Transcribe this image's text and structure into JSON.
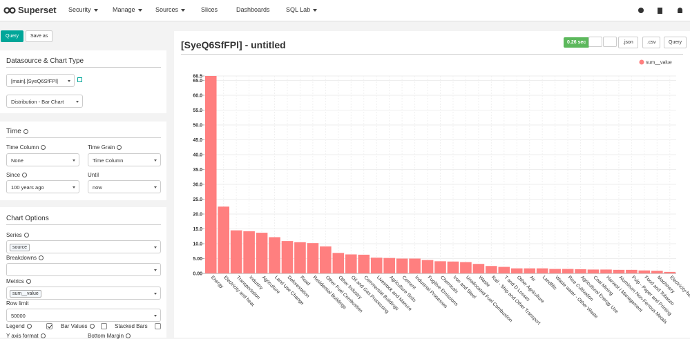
{
  "ui": {
    "nav": {
      "brand": "Superset",
      "items": [
        "Security",
        "Manage",
        "Sources",
        "Slices",
        "Dashboards",
        "SQL Lab"
      ]
    },
    "toolbar": {
      "query": "Query",
      "save_as": "Save as"
    },
    "datasource": {
      "title": "Datasource & Chart Type",
      "datasource": "[main].[SyeQ6SfFPl]",
      "viz_type": "Distribution - Bar Chart"
    },
    "time": {
      "title": "Time",
      "time_column_label": "Time Column",
      "time_grain_label": "Time Grain",
      "time_column": "None",
      "time_grain": "Time Column",
      "since_label": "Since",
      "until_label": "Until",
      "since": "100 years ago",
      "until": "now"
    },
    "options": {
      "title": "Chart Options",
      "series_label": "Series",
      "series_tag": "source",
      "breakdowns_label": "Breakdowns",
      "metrics_label": "Metrics",
      "metrics_tag": "sum__value",
      "row_limit_label": "Row limit",
      "row_limit": "50000",
      "legend_label": "Legend",
      "bar_values_label": "Bar Values",
      "stacked_bars_label": "Stacked Bars",
      "y_axis_format_label": "Y axis format",
      "bottom_margin_label": "Bottom Margin"
    },
    "header": {
      "duration": "0.26 sec",
      "json": ".json",
      "csv": ".csv",
      "query": "Query"
    }
  },
  "chart_data": {
    "type": "bar",
    "title": "[SyeQ6SfFPl] - untitled",
    "categories": [
      "Energy",
      "Electricity and heat",
      "Transportation",
      "Industry",
      "Agriculture",
      "Land Use Change",
      "Deforestation",
      "Road",
      "Residential Buildings",
      "Other Fuel Combustion",
      "Other Industry",
      "Oil and Gas Processing",
      "Commercial Buildings",
      "Livestock and Manure",
      "Agriculture Soils",
      "Cement",
      "Industrial Processes",
      "Fugitive Emissions",
      "Chemicals",
      "Iron and Steel",
      "Unallocated Fuel Combustion",
      "Waste",
      "Rail - Ship and Other Transport",
      "T and D Losses",
      "Other Agriculture",
      "Air",
      "Landfills",
      "Waste water - Other Waste",
      "Rice Cultivation",
      "Agricultural Energy Use",
      "Coal Mining",
      "Harvest / Management",
      "Aluminum Non-Ferrous Metals",
      "Pulp - Paper and Printing",
      "Food and Tobacco",
      "Machinery",
      "Electricity-heat"
    ],
    "series": [
      {
        "name": "sum__value",
        "color": "#ff7f7f",
        "values": [
          66.5,
          22.5,
          14.5,
          14.2,
          13.7,
          12.2,
          10.9,
          10.5,
          10.2,
          9.1,
          6.9,
          6.4,
          6.3,
          5.3,
          5.2,
          5.0,
          5.0,
          4.5,
          4.1,
          4.0,
          3.8,
          3.2,
          2.5,
          2.2,
          1.7,
          1.7,
          1.7,
          1.5,
          1.5,
          1.4,
          1.3,
          1.3,
          1.2,
          1.2,
          1.0,
          0.9,
          0.5
        ]
      }
    ],
    "ylim": [
      0,
      66.5
    ],
    "yticks": [
      {
        "value": 0,
        "label": "0.00"
      },
      {
        "value": 5,
        "label": "5.00"
      },
      {
        "value": 10,
        "label": "10.0"
      },
      {
        "value": 15,
        "label": "15.0"
      },
      {
        "value": 20,
        "label": "20.0"
      },
      {
        "value": 25,
        "label": "25.0"
      },
      {
        "value": 30,
        "label": "30.0"
      },
      {
        "value": 35,
        "label": "35.0"
      },
      {
        "value": 40,
        "label": "40.0"
      },
      {
        "value": 45,
        "label": "45.0"
      },
      {
        "value": 50,
        "label": "50.0"
      },
      {
        "value": 55,
        "label": "55.0"
      },
      {
        "value": 60,
        "label": "60.0"
      },
      {
        "value": 65,
        "label": "65.0"
      },
      66.5
    ],
    "grid": true,
    "legend": "top-right"
  }
}
